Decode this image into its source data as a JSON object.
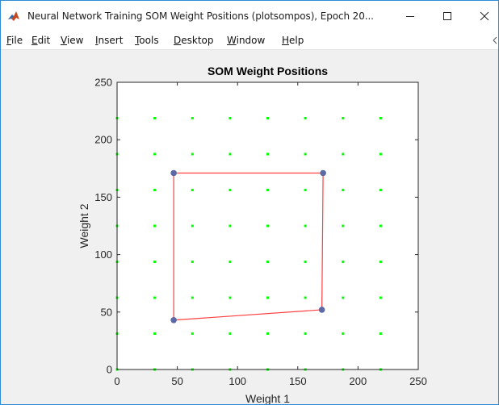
{
  "window": {
    "title": "Neural Network Training SOM Weight Positions (plotsompos), Epoch 20...",
    "minimize_icon": "minimize-icon",
    "maximize_icon": "maximize-icon",
    "close_icon": "close-icon",
    "app_icon": "matlab-icon"
  },
  "menu": [
    {
      "label": "File",
      "mnemonic": "F",
      "rest": "ile"
    },
    {
      "label": "Edit",
      "mnemonic": "E",
      "rest": "dit"
    },
    {
      "label": "View",
      "mnemonic": "V",
      "rest": "iew"
    },
    {
      "label": "Insert",
      "mnemonic": "I",
      "rest": "nsert"
    },
    {
      "label": "Tools",
      "mnemonic": "T",
      "rest": "ools"
    },
    {
      "label": "Desktop",
      "mnemonic": "D",
      "rest": "esktop"
    },
    {
      "label": "Window",
      "mnemonic": "W",
      "rest": "indow"
    },
    {
      "label": "Help",
      "mnemonic": "H",
      "rest": "elp"
    }
  ],
  "colors": {
    "input_points": "#00ff00",
    "neurons": "#5b6aa5",
    "neighbor_lines": "#ff0000",
    "axes_background": "#ffffff",
    "figure_background": "#f0f0f0"
  },
  "chart_data": {
    "type": "scatter",
    "title": "SOM Weight Positions",
    "xlabel": "Weight 1",
    "ylabel": "Weight 2",
    "xlim": [
      0,
      250
    ],
    "ylim": [
      0,
      250
    ],
    "xticks": [
      0,
      50,
      100,
      150,
      200,
      250
    ],
    "yticks": [
      0,
      50,
      100,
      150,
      200,
      250
    ],
    "grid": false,
    "input_points": {
      "x": [
        0,
        31.25,
        62.5,
        93.75,
        125,
        156.25,
        187.5,
        218.75
      ],
      "y": [
        0,
        31.25,
        62.5,
        93.75,
        125,
        156.25,
        187.5,
        218.75
      ]
    },
    "neurons": [
      {
        "x": 47,
        "y": 171
      },
      {
        "x": 171,
        "y": 171
      },
      {
        "x": 47,
        "y": 43
      },
      {
        "x": 170,
        "y": 52
      }
    ],
    "neighbor_links": [
      [
        0,
        1
      ],
      [
        1,
        3
      ],
      [
        3,
        2
      ],
      [
        2,
        0
      ]
    ]
  }
}
